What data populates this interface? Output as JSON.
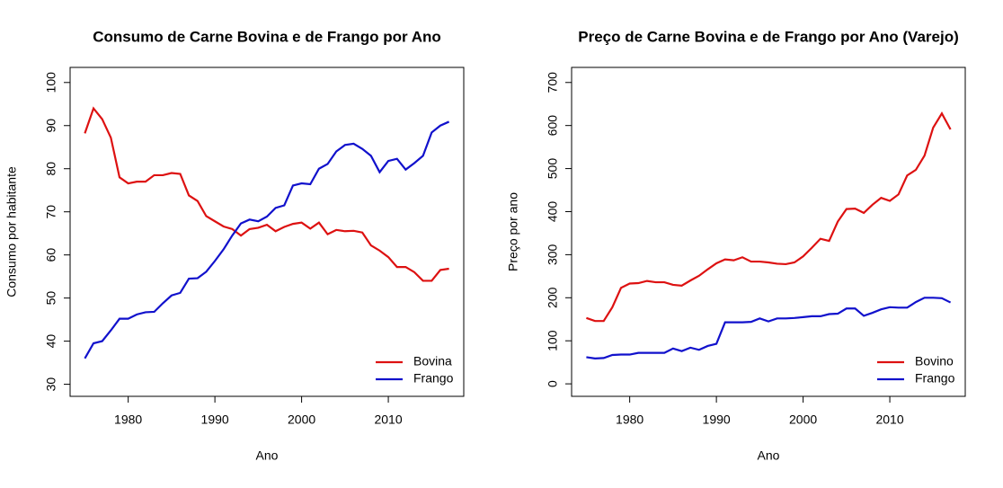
{
  "chart_data": [
    {
      "type": "line",
      "title": "Consumo de Carne Bovina e de Frango por Ano",
      "xlabel": "Ano",
      "ylabel": "Consumo por habitante",
      "x": [
        1975,
        1976,
        1977,
        1978,
        1979,
        1980,
        1981,
        1982,
        1983,
        1984,
        1985,
        1986,
        1987,
        1988,
        1989,
        1990,
        1991,
        1992,
        1993,
        1994,
        1995,
        1996,
        1997,
        1998,
        1999,
        2000,
        2001,
        2002,
        2003,
        2004,
        2005,
        2006,
        2007,
        2008,
        2009,
        2010,
        2011,
        2012,
        2013,
        2014,
        2015,
        2016,
        2017
      ],
      "series": [
        {
          "name": "Bovina",
          "color": "#dd1111",
          "values": [
            88.2,
            94,
            91.5,
            87.2,
            78,
            76.6,
            77,
            77,
            78.5,
            78.5,
            79,
            78.8,
            73.8,
            72.5,
            69,
            67.8,
            66.6,
            66,
            64.5,
            66,
            66.3,
            67,
            65.5,
            66.5,
            67.2,
            67.5,
            66.1,
            67.5,
            64.8,
            65.8,
            65.5,
            65.6,
            65.2,
            62.2,
            61,
            59.5,
            57.2,
            57.2,
            56,
            54,
            54,
            56.5,
            56.8
          ]
        },
        {
          "name": "Frango",
          "color": "#1111cc",
          "values": [
            36,
            39.5,
            40,
            42.5,
            45.2,
            45.2,
            46.2,
            46.7,
            46.8,
            48.8,
            50.6,
            51.2,
            54.5,
            54.6,
            56.1,
            58.6,
            61.3,
            64.5,
            67.3,
            68.2,
            67.8,
            68.9,
            70.9,
            71.5,
            76.1,
            76.6,
            76.4,
            80,
            81.1,
            84,
            85.5,
            85.8,
            84.6,
            83,
            79.2,
            81.8,
            82.3,
            79.8,
            81.3,
            83,
            88.4,
            90,
            90.9
          ]
        }
      ],
      "xlim": [
        1973.3,
        2018.7
      ],
      "xticks": [
        1980,
        1990,
        2000,
        2010
      ],
      "ylim": [
        27.2,
        103.5
      ],
      "yticks": [
        30,
        40,
        50,
        60,
        70,
        80,
        90,
        100
      ],
      "legend": "bottomright"
    },
    {
      "type": "line",
      "title": "Preço de Carne Bovina e de Frango por Ano (Varejo)",
      "xlabel": "Ano",
      "ylabel": "Preço por ano",
      "x": [
        1975,
        1976,
        1977,
        1978,
        1979,
        1980,
        1981,
        1982,
        1983,
        1984,
        1985,
        1986,
        1987,
        1988,
        1989,
        1990,
        1991,
        1992,
        1993,
        1994,
        1995,
        1996,
        1997,
        1998,
        1999,
        2000,
        2001,
        2002,
        2003,
        2004,
        2005,
        2006,
        2007,
        2008,
        2009,
        2010,
        2011,
        2012,
        2013,
        2014,
        2015,
        2016,
        2017
      ],
      "series": [
        {
          "name": "Bovino",
          "color": "#dd1111",
          "values": [
            153,
            146,
            146,
            178,
            223,
            233,
            234,
            239,
            236,
            236,
            230,
            228,
            240,
            251,
            266,
            280,
            289,
            287,
            294,
            284,
            284,
            282,
            279,
            278,
            282,
            296,
            316,
            337,
            332,
            377,
            406,
            407,
            397,
            416,
            432,
            425,
            440,
            484,
            497,
            530,
            595,
            628,
            591
          ]
        },
        {
          "name": "Frango",
          "color": "#1111cc",
          "values": [
            62,
            59,
            60,
            67,
            68,
            68,
            72,
            72,
            72,
            72,
            82,
            76,
            84,
            79,
            88,
            93,
            143,
            143,
            143,
            144,
            152,
            145,
            152,
            152,
            153,
            155,
            157,
            157,
            162,
            163,
            175,
            175,
            158,
            165,
            173,
            178,
            177,
            177,
            190,
            200,
            200,
            199,
            189
          ]
        }
      ],
      "xlim": [
        1973.3,
        2018.7
      ],
      "xticks": [
        1980,
        1990,
        2000,
        2010
      ],
      "ylim": [
        -29,
        735
      ],
      "yticks": [
        0,
        100,
        200,
        300,
        400,
        500,
        600,
        700
      ],
      "legend": "bottomright"
    }
  ]
}
